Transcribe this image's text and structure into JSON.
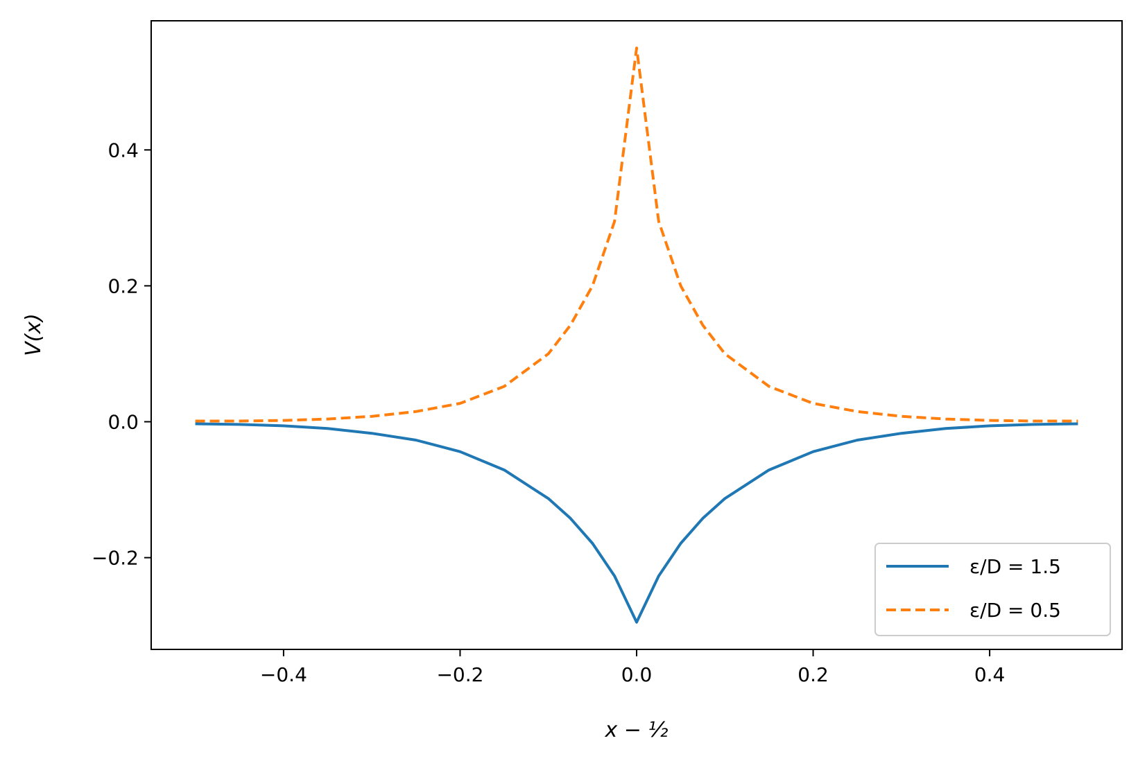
{
  "chart_data": {
    "type": "line",
    "xlabel": "x − ½",
    "ylabel": "V(x)",
    "xlim": [
      -0.55,
      0.55
    ],
    "ylim": [
      -0.335,
      0.59
    ],
    "x_ticks": [
      -0.4,
      -0.2,
      0.0,
      0.2,
      0.4
    ],
    "x_tick_labels": [
      "−0.4",
      "−0.2",
      "0.0",
      "0.2",
      "0.4"
    ],
    "y_ticks": [
      -0.2,
      0.0,
      0.2,
      0.4
    ],
    "y_tick_labels": [
      "−0.2",
      "0.0",
      "0.2",
      "0.4"
    ],
    "legend_position": "lower-right",
    "series": [
      {
        "name": "ε/D = 1.5",
        "color": "#1f77b4",
        "style": "solid",
        "x": [
          -0.5,
          -0.45,
          -0.4,
          -0.35,
          -0.3,
          -0.25,
          -0.2,
          -0.15,
          -0.1,
          -0.075,
          -0.05,
          -0.025,
          0.0,
          0.025,
          0.05,
          0.075,
          0.1,
          0.15,
          0.2,
          0.25,
          0.3,
          0.35,
          0.4,
          0.45,
          0.5
        ],
        "y": [
          -0.003,
          -0.004,
          -0.006,
          -0.01,
          -0.017,
          -0.027,
          -0.044,
          -0.071,
          -0.113,
          -0.142,
          -0.179,
          -0.227,
          -0.295,
          -0.227,
          -0.179,
          -0.142,
          -0.113,
          -0.071,
          -0.044,
          -0.027,
          -0.017,
          -0.01,
          -0.006,
          -0.004,
          -0.003
        ]
      },
      {
        "name": "ε/D = 0.5",
        "color": "#ff7f0e",
        "style": "dashed",
        "x": [
          -0.5,
          -0.45,
          -0.4,
          -0.35,
          -0.3,
          -0.25,
          -0.2,
          -0.15,
          -0.1,
          -0.075,
          -0.05,
          -0.025,
          0.0,
          0.025,
          0.05,
          0.075,
          0.1,
          0.15,
          0.2,
          0.25,
          0.3,
          0.35,
          0.4,
          0.45,
          0.5
        ],
        "y": [
          0.001,
          0.001,
          0.002,
          0.004,
          0.008,
          0.015,
          0.027,
          0.052,
          0.1,
          0.142,
          0.2,
          0.295,
          0.55,
          0.295,
          0.2,
          0.142,
          0.1,
          0.052,
          0.027,
          0.015,
          0.008,
          0.004,
          0.002,
          0.001,
          0.001
        ]
      }
    ]
  }
}
